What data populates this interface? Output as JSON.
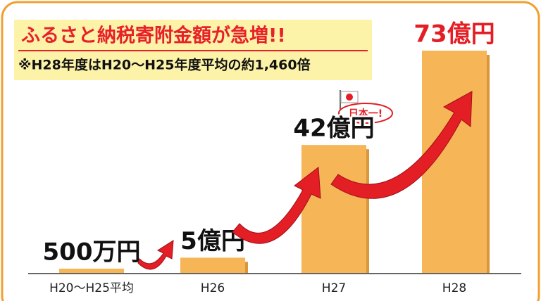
{
  "chart_data": {
    "type": "bar",
    "title": "ふるさと納税寄附金額が急増!!",
    "subtitle": "※H28年度はH20～H25年度平均の約1,460倍",
    "annotation": "日本一!",
    "categories": [
      "H20～H25平均",
      "H26",
      "H27",
      "H28"
    ],
    "values": [
      0.05,
      5,
      42,
      73
    ],
    "value_labels": [
      "500万円",
      "5億円",
      "42億円",
      "73億円"
    ],
    "color": "#f6b556"
  }
}
